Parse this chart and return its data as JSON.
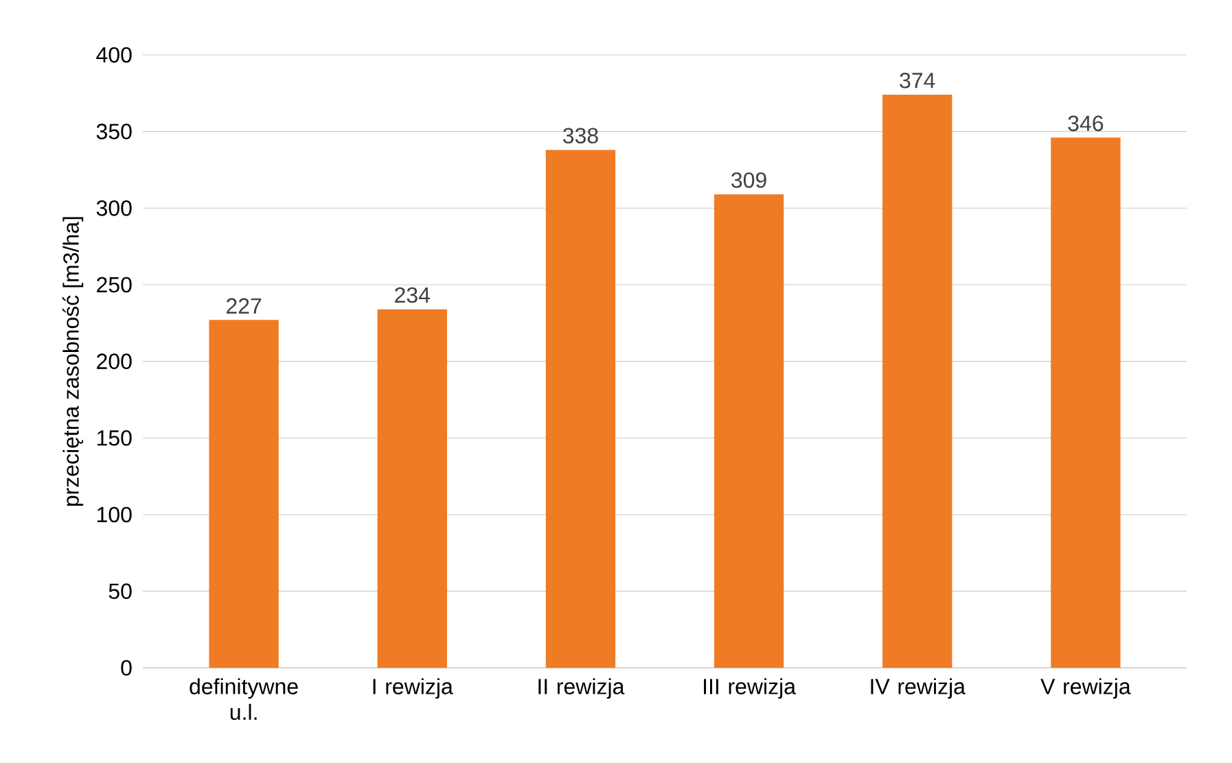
{
  "chart_data": {
    "type": "bar",
    "ylabel": "przeciętna zasobność [m3/ha]",
    "categories": [
      "definitywne u.l.",
      "I rewizja",
      "II rewizja",
      "III rewizja",
      "IV rewizja",
      "V rewizja"
    ],
    "values": [
      227,
      234,
      338,
      309,
      374,
      346
    ],
    "color": "#f07b25",
    "ylim": [
      0,
      400
    ],
    "yticks": [
      0,
      50,
      100,
      150,
      200,
      250,
      300,
      350,
      400
    ],
    "grid": "y",
    "data_labels": true
  }
}
